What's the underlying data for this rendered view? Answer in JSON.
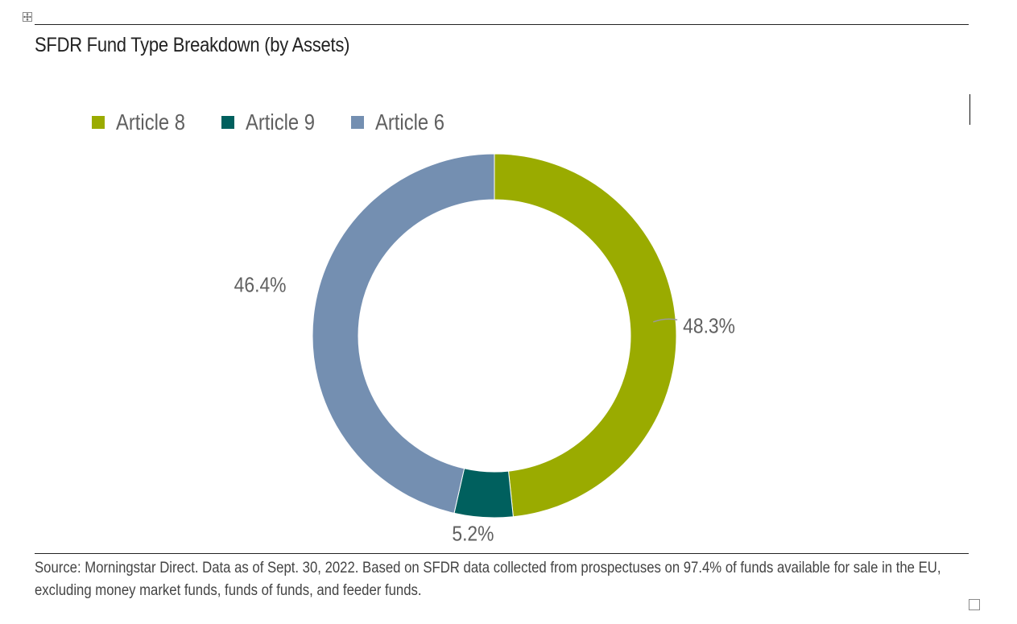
{
  "header": {
    "title": "SFDR Fund Type Breakdown (by Assets)"
  },
  "chart_data": {
    "type": "pie",
    "variant": "donut",
    "title": "SFDR Fund Type Breakdown (by Assets)",
    "legend_position": "top-left",
    "categories": [
      "Article 8",
      "Article 9",
      "Article 6"
    ],
    "values": [
      48.3,
      5.2,
      46.4
    ],
    "labels": [
      "48.3%",
      "5.2%",
      "46.4%"
    ],
    "colors": [
      "#9aab00",
      "#00605e",
      "#748fb1"
    ],
    "start_angle_deg": 0,
    "direction": "clockwise"
  },
  "footer": {
    "source": "Source: Morningstar Direct. Data as of Sept. 30, 2022. Based on SFDR data collected from prospectuses on 97.4% of funds available for sale in the EU, excluding money market funds, funds of funds, and feeder funds."
  },
  "icons": {
    "table_move_handle": "move-handle-icon",
    "resize_handle": "resize-handle-icon"
  }
}
